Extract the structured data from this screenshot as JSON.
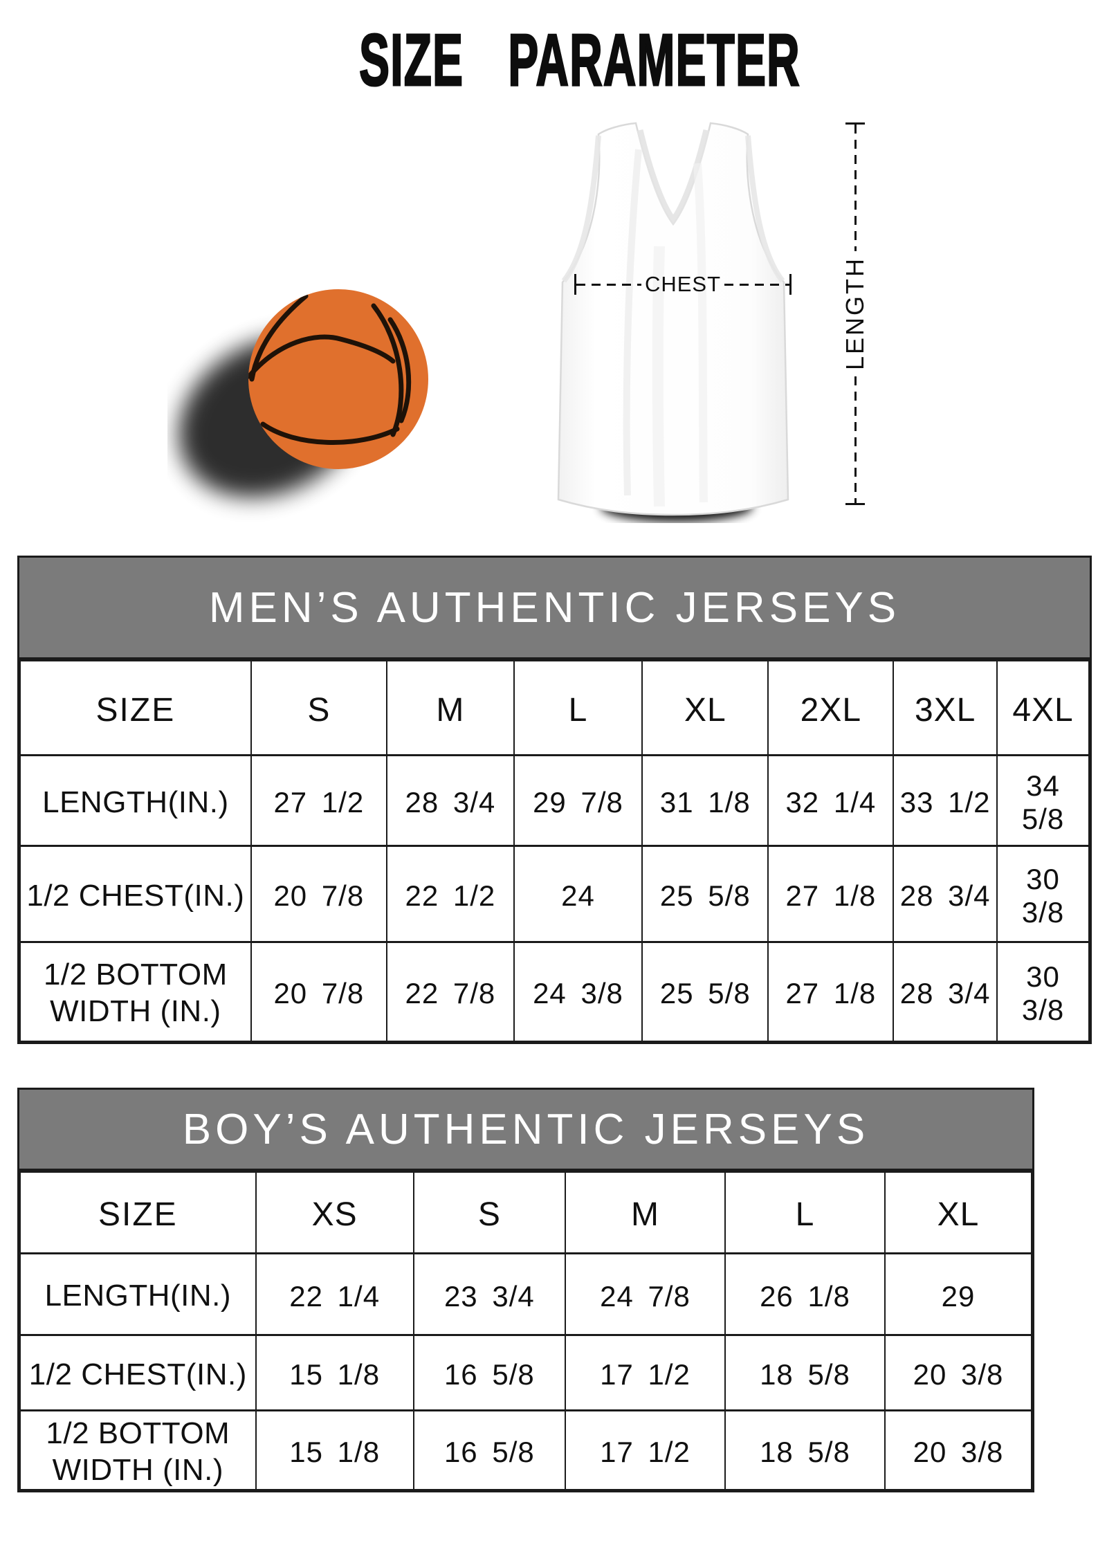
{
  "page_title": "SIZE PARAMETER",
  "diagram": {
    "chest_label": "CHEST",
    "length_label": "LENGTH",
    "icons": [
      "basketball-icon",
      "jersey-icon"
    ]
  },
  "colors": {
    "table_header_bg": "#7b7b7b",
    "table_header_text": "#ffffff",
    "table_border": "#1b1b1b",
    "text": "#111111",
    "basketball_orange": "#e0702d",
    "background": "#ffffff"
  },
  "chart_data": [
    {
      "type": "table",
      "id": "mens",
      "title": "MEN’S AUTHENTIC JERSEYS",
      "columns": [
        "SIZE",
        "S",
        "M",
        "L",
        "XL",
        "2XL",
        "3XL",
        "4XL"
      ],
      "rows": [
        {
          "label": "LENGTH(IN.)",
          "values": [
            "27 1/2",
            "28 3/4",
            "29 7/8",
            "31 1/8",
            "32 1/4",
            "33 1/2",
            "34 5/8"
          ]
        },
        {
          "label": "1/2 CHEST(IN.)",
          "values": [
            "20 7/8",
            "22 1/2",
            "24",
            "25 5/8",
            "27 1/8",
            "28 3/4",
            "30 3/8"
          ]
        },
        {
          "label": "1/2 BOTTOM WIDTH (IN.)",
          "values": [
            "20 7/8",
            "22 7/8",
            "24 3/8",
            "25 5/8",
            "27 1/8",
            "28 3/4",
            "30 3/8"
          ]
        }
      ]
    },
    {
      "type": "table",
      "id": "boys",
      "title": "BOY’S AUTHENTIC JERSEYS",
      "columns": [
        "SIZE",
        "XS",
        "S",
        "M",
        "L",
        "XL"
      ],
      "rows": [
        {
          "label": "LENGTH(IN.)",
          "values": [
            "22 1/4",
            "23 3/4",
            "24 7/8",
            "26 1/8",
            "29"
          ]
        },
        {
          "label": "1/2 CHEST(IN.)",
          "values": [
            "15 1/8",
            "16 5/8",
            "17 1/2",
            "18 5/8",
            "20 3/8"
          ]
        },
        {
          "label": "1/2 BOTTOM WIDTH (IN.)",
          "values": [
            "15 1/8",
            "16 5/8",
            "17 1/2",
            "18 5/8",
            "20 3/8"
          ]
        }
      ]
    }
  ]
}
